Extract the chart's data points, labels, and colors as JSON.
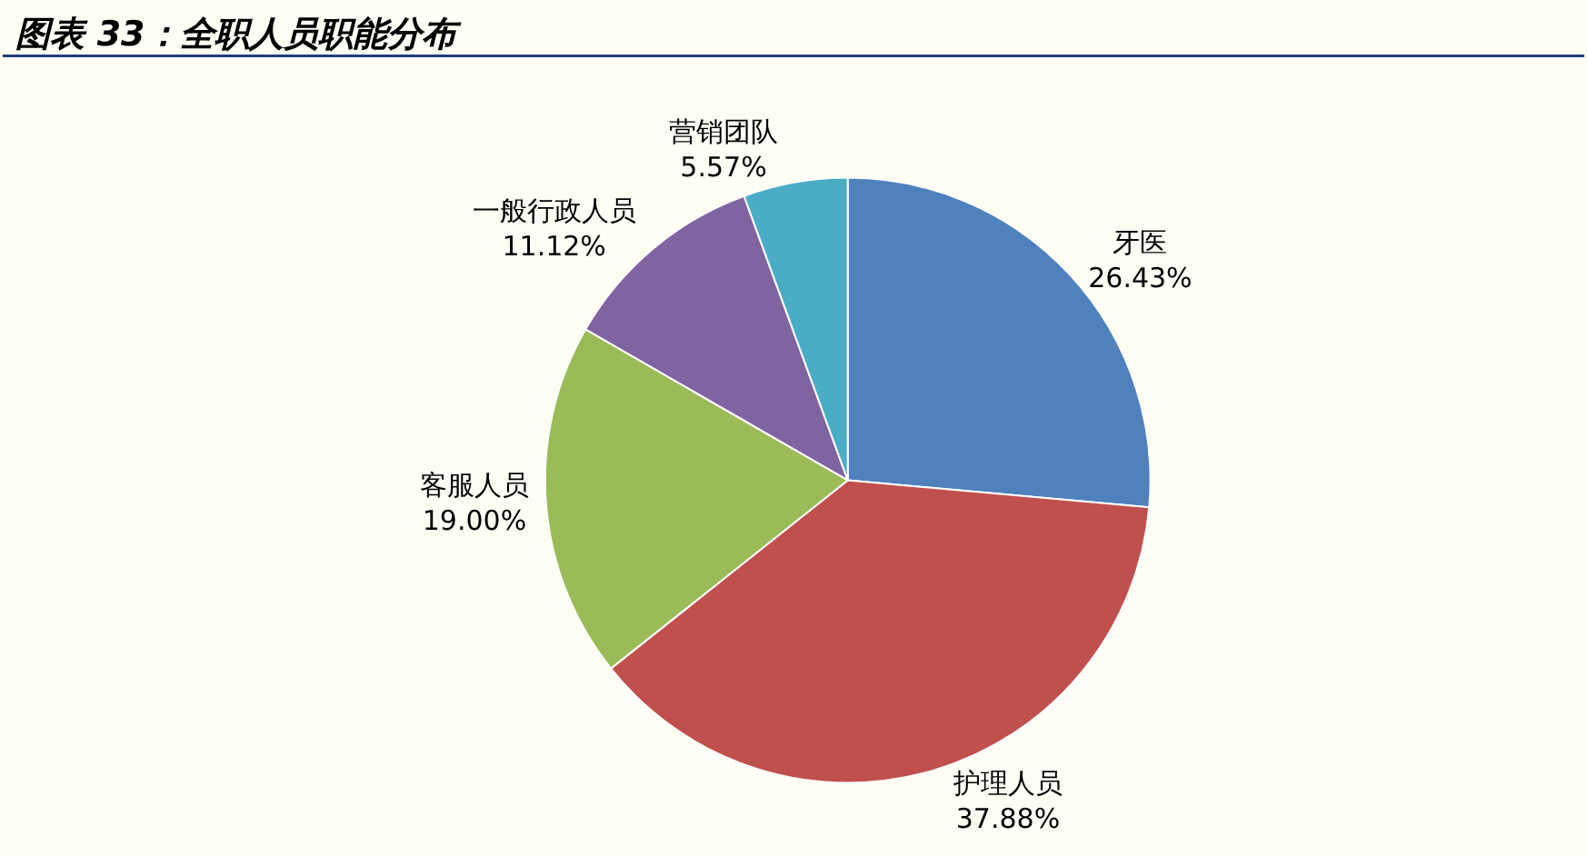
{
  "chart_data": {
    "type": "pie",
    "title": "图表 33：全职人员职能分布",
    "categories": [
      "牙医",
      "护理人员",
      "客服人员",
      "一般行政人员",
      "营销团队"
    ],
    "values": [
      26.43,
      37.88,
      19.0,
      11.12,
      5.57
    ],
    "value_labels": [
      "26.43%",
      "37.88%",
      "19.00%",
      "11.12%",
      "5.57%"
    ],
    "colors": [
      "#4f81bd",
      "#c0504d",
      "#9bbb59",
      "#8064a2",
      "#4bacc6"
    ],
    "legend": false
  }
}
